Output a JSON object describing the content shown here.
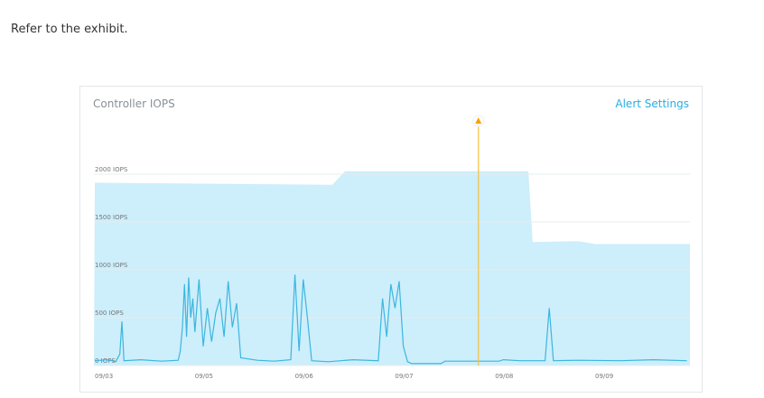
{
  "prompt": "Refer to the exhibit.",
  "card": {
    "title": "Controller IOPS",
    "alert_settings_label": "Alert Settings"
  },
  "colors": {
    "fill": "#cdeefb",
    "line": "#3cb6df",
    "marker": "#f5c242",
    "grid": "#e8ecee",
    "link": "#27aee3"
  },
  "chart_data": {
    "type": "area",
    "title": "Controller IOPS",
    "ylim": [
      0,
      2400
    ],
    "yticks": [
      0,
      500,
      1000,
      1500,
      2000
    ],
    "ytick_labels": [
      "0 IOPS",
      "500 IOPS",
      "1000 IOPS",
      "1500 IOPS",
      "2000 IOPS"
    ],
    "xtick_labels": [
      "09/03",
      "09/05",
      "09/06",
      "09/07",
      "09/08",
      "09/09"
    ],
    "grid": true,
    "marker": {
      "x": "09/07 20:00",
      "icon": "warning-triangle-icon"
    },
    "series": [
      {
        "kind": "area",
        "points": [
          [
            "09/03 00:00",
            1910
          ],
          [
            "09/06 09:00",
            1890
          ],
          [
            "09/06 12:00",
            2030
          ],
          [
            "09/08 08:00",
            2030
          ],
          [
            "09/08 09:00",
            1290
          ],
          [
            "09/08 20:00",
            1300
          ],
          [
            "09/09 00:00",
            1270
          ],
          [
            "09/09 22:00",
            1270
          ]
        ]
      },
      {
        "kind": "line",
        "points": [
          [
            "09/03 00:00",
            50
          ],
          [
            "09/03 06:00",
            60
          ],
          [
            "09/03 10:00",
            40
          ],
          [
            "09/03 12:00",
            120
          ],
          [
            "09/03 13:00",
            460
          ],
          [
            "09/03 14:00",
            50
          ],
          [
            "09/03 22:00",
            60
          ],
          [
            "09/04 08:00",
            45
          ],
          [
            "09/04 16:00",
            55
          ],
          [
            "09/04 17:00",
            150
          ],
          [
            "09/04 18:00",
            400
          ],
          [
            "09/04 19:00",
            850
          ],
          [
            "09/04 20:00",
            300
          ],
          [
            "09/04 21:00",
            920
          ],
          [
            "09/04 22:00",
            500
          ],
          [
            "09/04 23:00",
            700
          ],
          [
            "09/05 00:00",
            350
          ],
          [
            "09/05 01:00",
            900
          ],
          [
            "09/05 02:00",
            200
          ],
          [
            "09/05 03:00",
            600
          ],
          [
            "09/05 04:00",
            250
          ],
          [
            "09/05 05:00",
            550
          ],
          [
            "09/05 06:00",
            700
          ],
          [
            "09/05 07:00",
            300
          ],
          [
            "09/05 08:00",
            880
          ],
          [
            "09/05 09:00",
            400
          ],
          [
            "09/05 10:00",
            650
          ],
          [
            "09/05 11:00",
            80
          ],
          [
            "09/05 15:00",
            55
          ],
          [
            "09/05 19:00",
            45
          ],
          [
            "09/05 23:00",
            60
          ],
          [
            "09/06 00:00",
            950
          ],
          [
            "09/06 01:00",
            150
          ],
          [
            "09/06 02:00",
            900
          ],
          [
            "09/06 03:00",
            500
          ],
          [
            "09/06 04:00",
            50
          ],
          [
            "09/06 08:00",
            40
          ],
          [
            "09/06 14:00",
            60
          ],
          [
            "09/06 20:00",
            50
          ],
          [
            "09/06 21:00",
            700
          ],
          [
            "09/06 22:00",
            300
          ],
          [
            "09/06 23:00",
            850
          ],
          [
            "09/07 00:00",
            600
          ],
          [
            "09/07 01:00",
            880
          ],
          [
            "09/07 02:00",
            200
          ],
          [
            "09/07 03:00",
            40
          ],
          [
            "09/07 04:00",
            20
          ],
          [
            "09/07 11:00",
            20
          ],
          [
            "09/07 12:00",
            45
          ],
          [
            "09/08 01:00",
            45
          ],
          [
            "09/08 02:00",
            60
          ],
          [
            "09/08 06:00",
            50
          ],
          [
            "09/08 12:00",
            50
          ],
          [
            "09/08 13:00",
            600
          ],
          [
            "09/08 14:00",
            50
          ],
          [
            "09/08 20:00",
            55
          ],
          [
            "09/09 06:00",
            50
          ],
          [
            "09/09 14:00",
            60
          ],
          [
            "09/09 22:00",
            50
          ]
        ]
      }
    ]
  }
}
